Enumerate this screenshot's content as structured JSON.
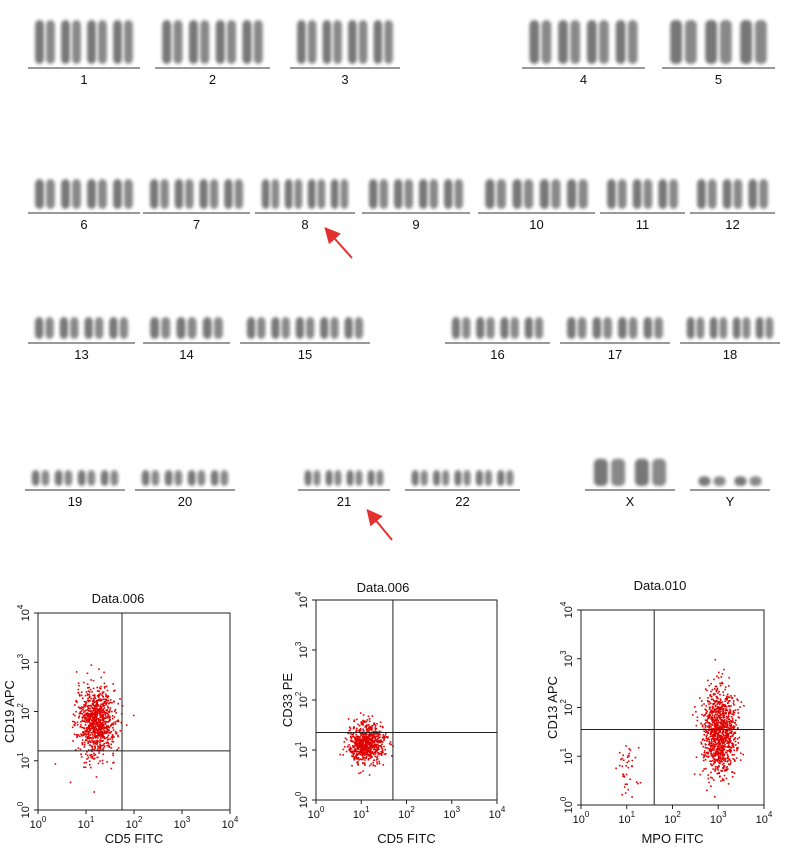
{
  "karyotype": {
    "chromosomes": [
      "1",
      "2",
      "3",
      "4",
      "5",
      "6",
      "7",
      "8",
      "9",
      "10",
      "11",
      "12",
      "13",
      "14",
      "15",
      "16",
      "17",
      "18",
      "19",
      "20",
      "21",
      "22",
      "X",
      "Y"
    ]
  },
  "flow_plots": [
    {
      "title": "Data.006",
      "x_label": "CD5 FITC",
      "y_label": "CD19 APC",
      "x_ticks": [
        {
          "base": "10",
          "exp": "0"
        },
        {
          "base": "10",
          "exp": "1"
        },
        {
          "base": "10",
          "exp": "2"
        },
        {
          "base": "10",
          "exp": "3"
        },
        {
          "base": "10",
          "exp": "4"
        }
      ],
      "y_ticks": [
        {
          "base": "10",
          "exp": "0"
        },
        {
          "base": "10",
          "exp": "1"
        },
        {
          "base": "10",
          "exp": "2"
        },
        {
          "base": "10",
          "exp": "3"
        },
        {
          "base": "10",
          "exp": "4"
        }
      ]
    },
    {
      "title": "Data.006",
      "x_label": "CD5 FITC",
      "y_label": "CD33 PE",
      "x_ticks": [
        {
          "base": "10",
          "exp": "0"
        },
        {
          "base": "10",
          "exp": "1"
        },
        {
          "base": "10",
          "exp": "2"
        },
        {
          "base": "10",
          "exp": "3"
        },
        {
          "base": "10",
          "exp": "4"
        }
      ],
      "y_ticks": [
        {
          "base": "10",
          "exp": "0"
        },
        {
          "base": "10",
          "exp": "1"
        },
        {
          "base": "10",
          "exp": "2"
        },
        {
          "base": "10",
          "exp": "3"
        },
        {
          "base": "10",
          "exp": "4"
        }
      ]
    },
    {
      "title": "Data.010",
      "x_label": "MPO FITC",
      "y_label": "CD13 APC",
      "x_ticks": [
        {
          "base": "10",
          "exp": "0"
        },
        {
          "base": "10",
          "exp": "1"
        },
        {
          "base": "10",
          "exp": "2"
        },
        {
          "base": "10",
          "exp": "3"
        },
        {
          "base": "10",
          "exp": "4"
        }
      ],
      "y_ticks": [
        {
          "base": "10",
          "exp": "0"
        },
        {
          "base": "10",
          "exp": "1"
        },
        {
          "base": "10",
          "exp": "2"
        },
        {
          "base": "10",
          "exp": "3"
        },
        {
          "base": "10",
          "exp": "4"
        }
      ]
    }
  ]
}
